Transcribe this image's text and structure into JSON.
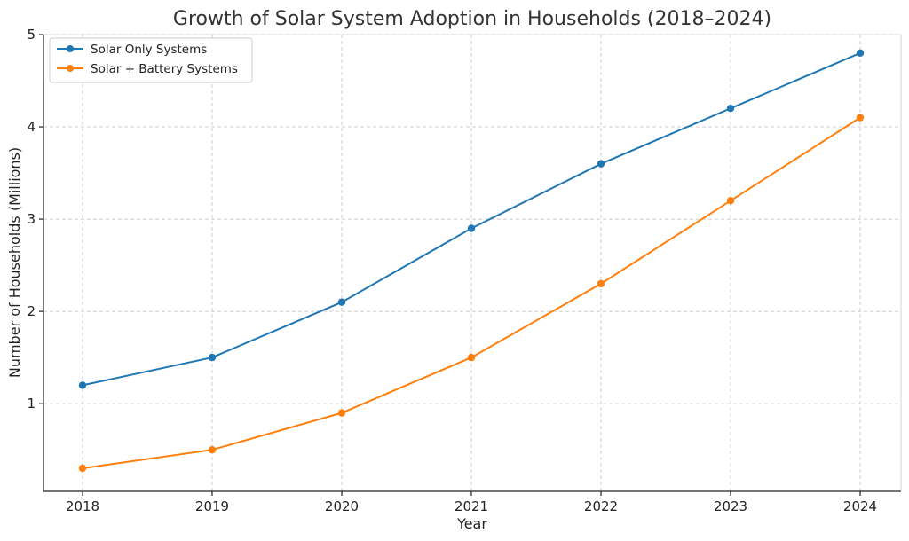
{
  "chart_data": {
    "type": "line",
    "title": "Growth of Solar System Adoption in Households (2018–2024)",
    "xlabel": "Year",
    "ylabel": "Number of Households (Millions)",
    "categories": [
      "2018",
      "2019",
      "2020",
      "2021",
      "2022",
      "2023",
      "2024"
    ],
    "ylim": [
      0.05,
      5
    ],
    "yticks": [
      1,
      2,
      3,
      4,
      5
    ],
    "grid": true,
    "legend": "top-left",
    "series": [
      {
        "name": "Solar Only Systems",
        "color": "#1f77b4",
        "marker": "circle",
        "values": [
          1.2,
          1.5,
          2.1,
          2.9,
          3.6,
          4.2,
          4.8
        ]
      },
      {
        "name": "Solar + Battery Systems",
        "color": "#ff7f0e",
        "marker": "circle",
        "values": [
          0.3,
          0.5,
          0.9,
          1.5,
          2.3,
          3.2,
          4.1
        ]
      }
    ]
  }
}
